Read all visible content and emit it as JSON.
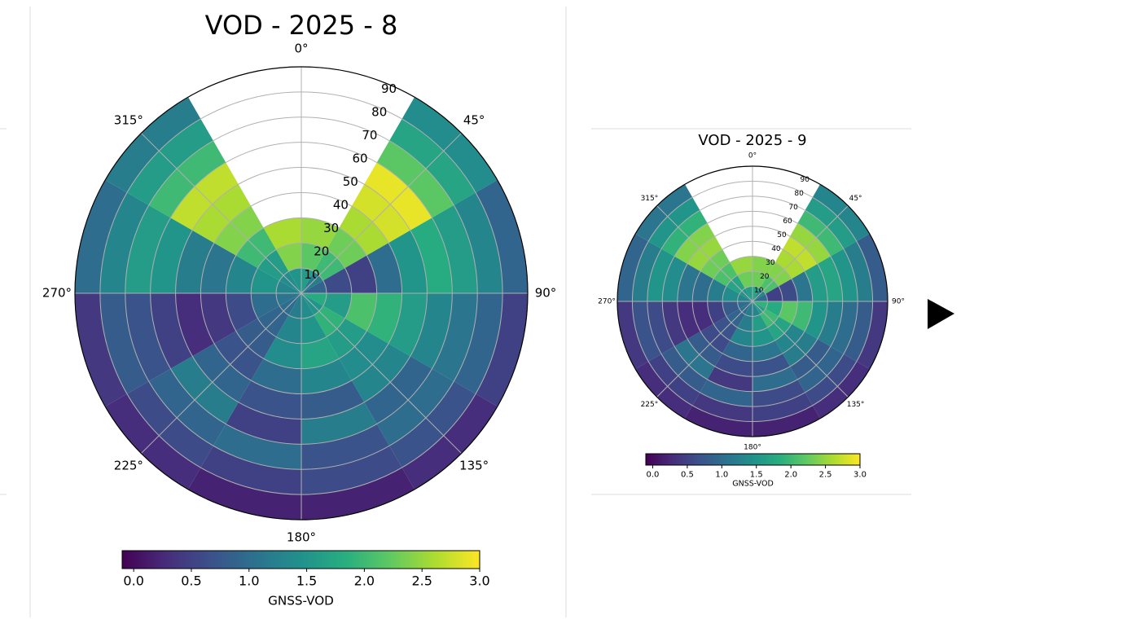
{
  "chart_data": [
    {
      "type": "polar-heatmap",
      "title": "VOD - 2025 - 8",
      "theta_bins": [
        0,
        30,
        60,
        90,
        120,
        150,
        180,
        210,
        240,
        270,
        300,
        330,
        360
      ],
      "r_bins": [
        0,
        10,
        20,
        30,
        40,
        50,
        60,
        70,
        80,
        90
      ],
      "values": [
        [
          1.6,
          1.2,
          0.9,
          1.8,
          1.5,
          1.4,
          1.2,
          1.0,
          1.1,
          1.3,
          1.4,
          1.5
        ],
        [
          2.2,
          2.0,
          0.6,
          1.6,
          1.9,
          1.5,
          1.3,
          0.9,
          1.0,
          1.5,
          1.6,
          2.4
        ],
        [
          2.5,
          2.3,
          0.5,
          2.1,
          1.6,
          1.7,
          1.4,
          0.8,
          0.6,
          1.3,
          2.0,
          2.6
        ],
        [
          null,
          2.6,
          1.0,
          1.9,
          1.4,
          1.3,
          1.0,
          0.7,
          0.4,
          1.1,
          2.4,
          null
        ],
        [
          null,
          2.8,
          1.5,
          1.6,
          1.3,
          0.8,
          0.7,
          0.9,
          0.3,
          1.2,
          2.6,
          null
        ],
        [
          null,
          2.9,
          1.8,
          1.3,
          0.9,
          1.2,
          0.5,
          1.2,
          0.5,
          1.5,
          2.7,
          null
        ],
        [
          null,
          2.2,
          1.6,
          1.1,
          1.0,
          0.7,
          1.0,
          0.9,
          0.7,
          1.6,
          2.0,
          null
        ],
        [
          null,
          1.7,
          1.3,
          0.9,
          0.7,
          0.6,
          0.5,
          0.6,
          0.8,
          1.3,
          1.6,
          null
        ],
        [
          null,
          1.4,
          0.9,
          0.5,
          0.3,
          0.2,
          0.2,
          0.3,
          0.4,
          1.0,
          1.2,
          null
        ]
      ],
      "rlim": [
        0,
        90
      ],
      "rticks": [
        10,
        20,
        30,
        40,
        50,
        60,
        70,
        80,
        90
      ],
      "thetaticks": [
        {
          "value": 0,
          "label": "0°"
        },
        {
          "value": 45,
          "label": "45°"
        },
        {
          "value": 90,
          "label": "90°"
        },
        {
          "value": 135,
          "label": "135°"
        },
        {
          "value": 180,
          "label": "180°"
        },
        {
          "value": 225,
          "label": "225°"
        },
        {
          "value": 270,
          "label": "270°"
        },
        {
          "value": 315,
          "label": "315°"
        }
      ],
      "clim": [
        -0.1,
        3.0
      ],
      "cticks": [
        {
          "value": 0,
          "label": "0.0"
        },
        0.5,
        {
          "value": 1,
          "label": "1.0"
        },
        1.5,
        {
          "value": 2,
          "label": "2.0"
        },
        2.5,
        {
          "value": 3,
          "label": "3.0"
        }
      ],
      "colorbar_label": "GNSS-VOD",
      "colormap": "viridis"
    },
    {
      "type": "polar-heatmap",
      "title": "VOD - 2025 - 9",
      "theta_bins": [
        0,
        30,
        60,
        90,
        120,
        150,
        180,
        210,
        240,
        270,
        300,
        330,
        360
      ],
      "r_bins": [
        0,
        10,
        20,
        30,
        40,
        50,
        60,
        70,
        80,
        90
      ],
      "values": [
        [
          1.7,
          1.3,
          1.0,
          1.9,
          1.6,
          1.3,
          1.2,
          1.0,
          1.0,
          1.3,
          1.5,
          1.6
        ],
        [
          2.3,
          2.1,
          0.5,
          1.8,
          2.0,
          1.6,
          1.2,
          0.9,
          0.8,
          1.4,
          1.7,
          2.3
        ],
        [
          2.4,
          2.4,
          0.6,
          2.2,
          1.7,
          1.5,
          1.3,
          0.7,
          0.5,
          1.2,
          2.1,
          2.5
        ],
        [
          null,
          2.6,
          1.1,
          2.0,
          1.3,
          1.1,
          0.9,
          0.6,
          0.3,
          1.0,
          2.3,
          null
        ],
        [
          null,
          2.7,
          1.6,
          1.5,
          1.2,
          0.7,
          0.6,
          0.8,
          0.3,
          1.1,
          2.5,
          null
        ],
        [
          null,
          2.5,
          1.7,
          1.2,
          0.8,
          1.0,
          0.4,
          1.1,
          0.4,
          1.4,
          2.4,
          null
        ],
        [
          null,
          2.0,
          1.5,
          1.0,
          0.9,
          0.6,
          0.9,
          0.8,
          0.6,
          1.5,
          1.9,
          null
        ],
        [
          null,
          1.6,
          1.2,
          0.8,
          0.6,
          0.5,
          0.4,
          0.5,
          0.7,
          1.2,
          1.5,
          null
        ],
        [
          null,
          1.3,
          0.8,
          0.4,
          0.3,
          0.2,
          0.2,
          0.3,
          0.4,
          0.9,
          1.1,
          null
        ]
      ],
      "rlim": [
        0,
        90
      ],
      "rticks": [
        10,
        20,
        30,
        40,
        50,
        60,
        70,
        80,
        90
      ],
      "thetaticks": [
        {
          "value": 0,
          "label": "0°"
        },
        {
          "value": 45,
          "label": "45°"
        },
        {
          "value": 90,
          "label": "90°"
        },
        {
          "value": 135,
          "label": "135°"
        },
        {
          "value": 180,
          "label": "180°"
        },
        {
          "value": 225,
          "label": "225°"
        },
        {
          "value": 270,
          "label": "270°"
        },
        {
          "value": 315,
          "label": "315°"
        }
      ],
      "clim": [
        -0.1,
        3.0
      ],
      "cticks": [
        {
          "value": 0,
          "label": "0.0"
        },
        0.5,
        {
          "value": 1,
          "label": "1.0"
        },
        1.5,
        {
          "value": 2,
          "label": "2.0"
        },
        2.5,
        {
          "value": 3,
          "label": "3.0"
        }
      ],
      "colorbar_label": "GNSS-VOD",
      "colormap": "viridis"
    }
  ]
}
